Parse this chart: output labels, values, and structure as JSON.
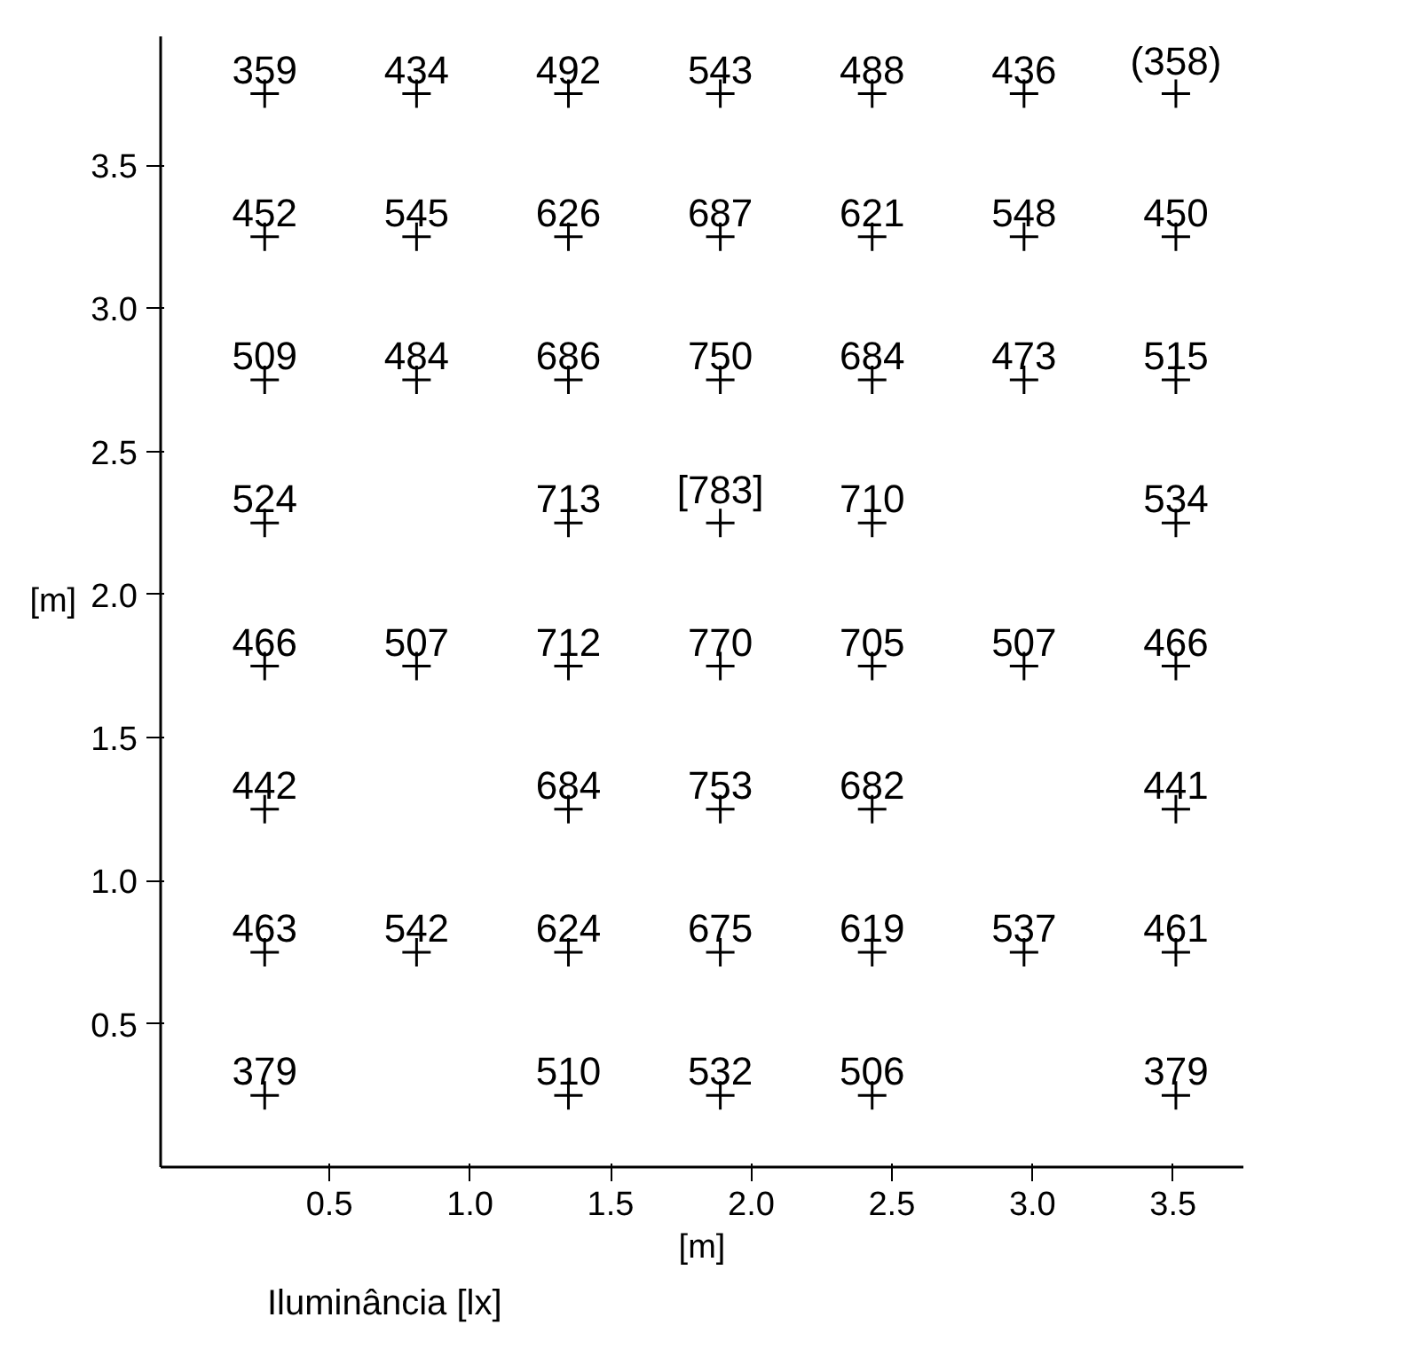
{
  "chart_data": {
    "type": "scatter",
    "xlabel": "[m]",
    "ylabel": "[m]",
    "annotations": [
      "Iluminância [lx]",
      {
        "text": "359",
        "x": 0.27,
        "y": 3.75
      },
      {
        "text": "434",
        "x": 0.81,
        "y": 3.75
      },
      {
        "text": "492",
        "x": 1.35,
        "y": 3.75
      },
      {
        "text": "543",
        "x": 1.89,
        "y": 3.75
      },
      {
        "text": "488",
        "x": 2.43,
        "y": 3.75
      },
      {
        "text": "436",
        "x": 2.97,
        "y": 3.75
      },
      {
        "text": "(358)",
        "x": 3.51,
        "y": 3.75
      },
      {
        "text": "452",
        "x": 0.27,
        "y": 3.25
      },
      {
        "text": "545",
        "x": 0.81,
        "y": 3.25
      },
      {
        "text": "626",
        "x": 1.35,
        "y": 3.25
      },
      {
        "text": "687",
        "x": 1.89,
        "y": 3.25
      },
      {
        "text": "621",
        "x": 2.43,
        "y": 3.25
      },
      {
        "text": "548",
        "x": 2.97,
        "y": 3.25
      },
      {
        "text": "450",
        "x": 3.51,
        "y": 3.25
      },
      {
        "text": "509",
        "x": 0.27,
        "y": 2.75
      },
      {
        "text": "484",
        "x": 0.81,
        "y": 2.75
      },
      {
        "text": "686",
        "x": 1.35,
        "y": 2.75
      },
      {
        "text": "750",
        "x": 1.89,
        "y": 2.75
      },
      {
        "text": "684",
        "x": 2.43,
        "y": 2.75
      },
      {
        "text": "473",
        "x": 2.97,
        "y": 2.75
      },
      {
        "text": "515",
        "x": 3.51,
        "y": 2.75
      },
      {
        "text": "524",
        "x": 0.27,
        "y": 2.25
      },
      {
        "text": "713",
        "x": 1.35,
        "y": 2.25
      },
      {
        "text": "[783]",
        "x": 1.89,
        "y": 2.25
      },
      {
        "text": "710",
        "x": 2.43,
        "y": 2.25
      },
      {
        "text": "534",
        "x": 3.51,
        "y": 2.25
      },
      {
        "text": "466",
        "x": 0.27,
        "y": 1.75
      },
      {
        "text": "507",
        "x": 0.81,
        "y": 1.75
      },
      {
        "text": "712",
        "x": 1.35,
        "y": 1.75
      },
      {
        "text": "770",
        "x": 1.89,
        "y": 1.75
      },
      {
        "text": "705",
        "x": 2.43,
        "y": 1.75
      },
      {
        "text": "507",
        "x": 2.97,
        "y": 1.75
      },
      {
        "text": "466",
        "x": 3.51,
        "y": 1.75
      },
      {
        "text": "442",
        "x": 0.27,
        "y": 1.25
      },
      {
        "text": "684",
        "x": 1.35,
        "y": 1.25
      },
      {
        "text": "753",
        "x": 1.89,
        "y": 1.25
      },
      {
        "text": "682",
        "x": 2.43,
        "y": 1.25
      },
      {
        "text": "441",
        "x": 3.51,
        "y": 1.25
      },
      {
        "text": "463",
        "x": 0.27,
        "y": 0.75
      },
      {
        "text": "542",
        "x": 0.81,
        "y": 0.75
      },
      {
        "text": "624",
        "x": 1.35,
        "y": 0.75
      },
      {
        "text": "675",
        "x": 1.89,
        "y": 0.75
      },
      {
        "text": "619",
        "x": 2.43,
        "y": 0.75
      },
      {
        "text": "537",
        "x": 2.97,
        "y": 0.75
      },
      {
        "text": "461",
        "x": 3.51,
        "y": 0.75
      },
      {
        "text": "379",
        "x": 0.27,
        "y": 0.25
      },
      {
        "text": "510",
        "x": 1.35,
        "y": 0.25
      },
      {
        "text": "532",
        "x": 1.89,
        "y": 0.25
      },
      {
        "text": "506",
        "x": 2.43,
        "y": 0.25
      },
      {
        "text": "379",
        "x": 3.51,
        "y": 0.25
      }
    ],
    "xlim": [
      -0.1,
      3.75
    ],
    "ylim": [
      0,
      3.95
    ],
    "xticks": [
      {
        "value": 0.5,
        "label": "0.5"
      },
      {
        "value": 1,
        "label": "1.0"
      },
      {
        "value": 1.5,
        "label": "1.5"
      },
      {
        "value": 2,
        "label": "2.0"
      },
      {
        "value": 2.5,
        "label": "2.5"
      },
      {
        "value": 3,
        "label": "3.0"
      },
      {
        "value": 3.5,
        "label": "3.5"
      }
    ],
    "yticks": [
      {
        "value": 0.5,
        "label": "0.5"
      },
      {
        "value": 1,
        "label": "1.0"
      },
      {
        "value": 1.5,
        "label": "1.5"
      },
      {
        "value": 2,
        "label": "2.0"
      },
      {
        "value": 2.5,
        "label": "2.5"
      },
      {
        "value": 3,
        "label": "3.0"
      },
      {
        "value": 3.5,
        "label": "3.5"
      }
    ],
    "grid": false,
    "marker": "cross",
    "series": [
      {
        "color": "#000000",
        "x": [
          0.27,
          0.81,
          1.35,
          1.89,
          2.43,
          2.97,
          3.51,
          0.27,
          0.81,
          1.35,
          1.89,
          2.43,
          2.97,
          3.51,
          0.27,
          0.81,
          1.35,
          1.89,
          2.43,
          2.97,
          3.51,
          0.27,
          1.35,
          1.89,
          2.43,
          3.51,
          0.27,
          0.81,
          1.35,
          1.89,
          2.43,
          2.97,
          3.51,
          0.27,
          1.35,
          1.89,
          2.43,
          3.51,
          0.27,
          0.81,
          1.35,
          1.89,
          2.43,
          2.97,
          3.51,
          0.27,
          1.35,
          1.89,
          2.43,
          3.51
        ],
        "values": [
          3.75,
          3.75,
          3.75,
          3.75,
          3.75,
          3.75,
          3.75,
          3.25,
          3.25,
          3.25,
          3.25,
          3.25,
          3.25,
          3.25,
          2.75,
          2.75,
          2.75,
          2.75,
          2.75,
          2.75,
          2.75,
          2.25,
          2.25,
          2.25,
          2.25,
          2.25,
          1.75,
          1.75,
          1.75,
          1.75,
          1.75,
          1.75,
          1.75,
          1.25,
          1.25,
          1.25,
          1.25,
          1.25,
          0.75,
          0.75,
          0.75,
          0.75,
          0.75,
          0.75,
          0.75,
          0.25,
          0.25,
          0.25,
          0.25,
          0.25
        ]
      }
    ]
  }
}
